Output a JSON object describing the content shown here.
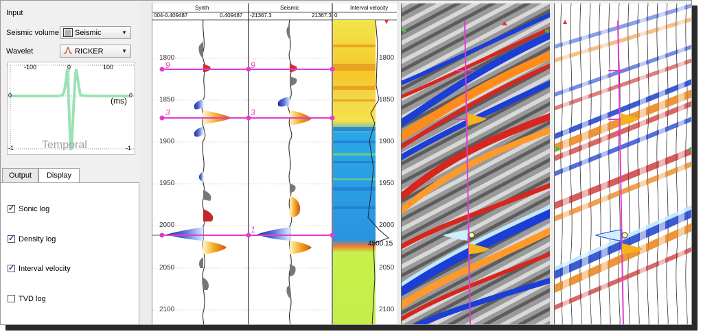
{
  "input_group": {
    "title": "Input",
    "seismic_volume_label": "Seismic volume",
    "seismic_volume_value": "Seismic",
    "wavelet_label": "Wavelet",
    "wavelet_value": "RICKER"
  },
  "wavelet_plot": {
    "x_ticks": [
      "-100",
      "0",
      "100"
    ],
    "y_top_left": "0",
    "y_top_right": "0",
    "y_bottom_left": "-1",
    "y_bottom_right": "-1",
    "unit": "(ms)",
    "domain_label": "Temporal"
  },
  "tabs": {
    "output": "Output",
    "display": "Display",
    "active": "display"
  },
  "display_options": [
    {
      "label": "Sonic log",
      "checked": true
    },
    {
      "label": "Density log",
      "checked": true
    },
    {
      "label": "Interval velocity",
      "checked": true
    },
    {
      "label": "TVD log",
      "checked": false
    }
  ],
  "tracks": {
    "synth": {
      "title": "Synth",
      "min": "004-0.409487",
      "max": "0.409487"
    },
    "seismic": {
      "title": "Seismic",
      "min": "-21367.3",
      "max": "21367.3"
    },
    "interval_velocity": {
      "title": "Interval velocity",
      "min": "0",
      "readout": "4500.15"
    }
  },
  "depth_ticks": [
    "1800",
    "1850",
    "1900",
    "1950",
    "2000",
    "2050",
    "2100"
  ],
  "markers": [
    "9",
    "3",
    "1"
  ],
  "colors": {
    "marker": "#e23bd2",
    "accent_blue": "#1a4ad8",
    "accent_orange": "#e8821a"
  }
}
